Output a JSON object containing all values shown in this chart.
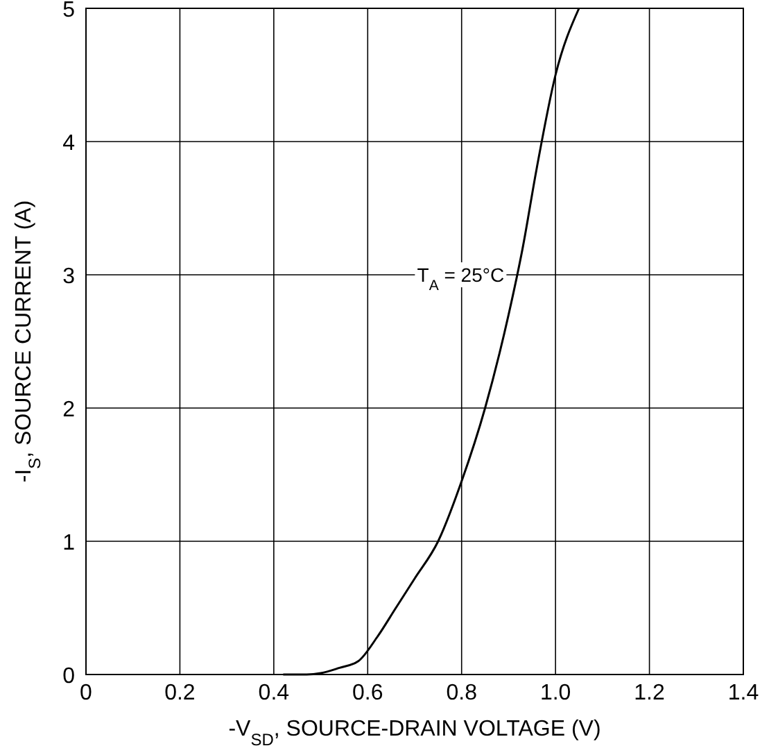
{
  "chart_data": {
    "type": "line",
    "xlabel": "-V$_{SD}$, SOURCE-DRAIN VOLTAGE (V)",
    "ylabel": "-I$_{S}$, SOURCE CURRENT (A)",
    "x": [
      0.42,
      0.47,
      0.5,
      0.54,
      0.58,
      0.62,
      0.66,
      0.7,
      0.75,
      0.8,
      0.85,
      0.9,
      0.93,
      0.96,
      1.0,
      1.05
    ],
    "series": [
      {
        "color": "#000000",
        "values": [
          0,
          0,
          0.01,
          0.05,
          0.1,
          0.28,
          0.5,
          0.72,
          1.0,
          1.45,
          2.0,
          2.7,
          3.2,
          3.8,
          4.5,
          5.0
        ]
      }
    ],
    "xlim": [
      0,
      1.4
    ],
    "ylim": [
      0,
      5
    ],
    "xticks": [
      0,
      0.2,
      0.4,
      0.6,
      0.8,
      {
        "value": 1,
        "label": "1.0"
      },
      1.2,
      1.4
    ],
    "yticks": [
      0,
      1,
      2,
      3,
      4,
      5
    ],
    "grid": true,
    "marker": "none",
    "line_style": "solid",
    "annotations": [
      "T$_{A}$ = 25°C"
    ]
  }
}
